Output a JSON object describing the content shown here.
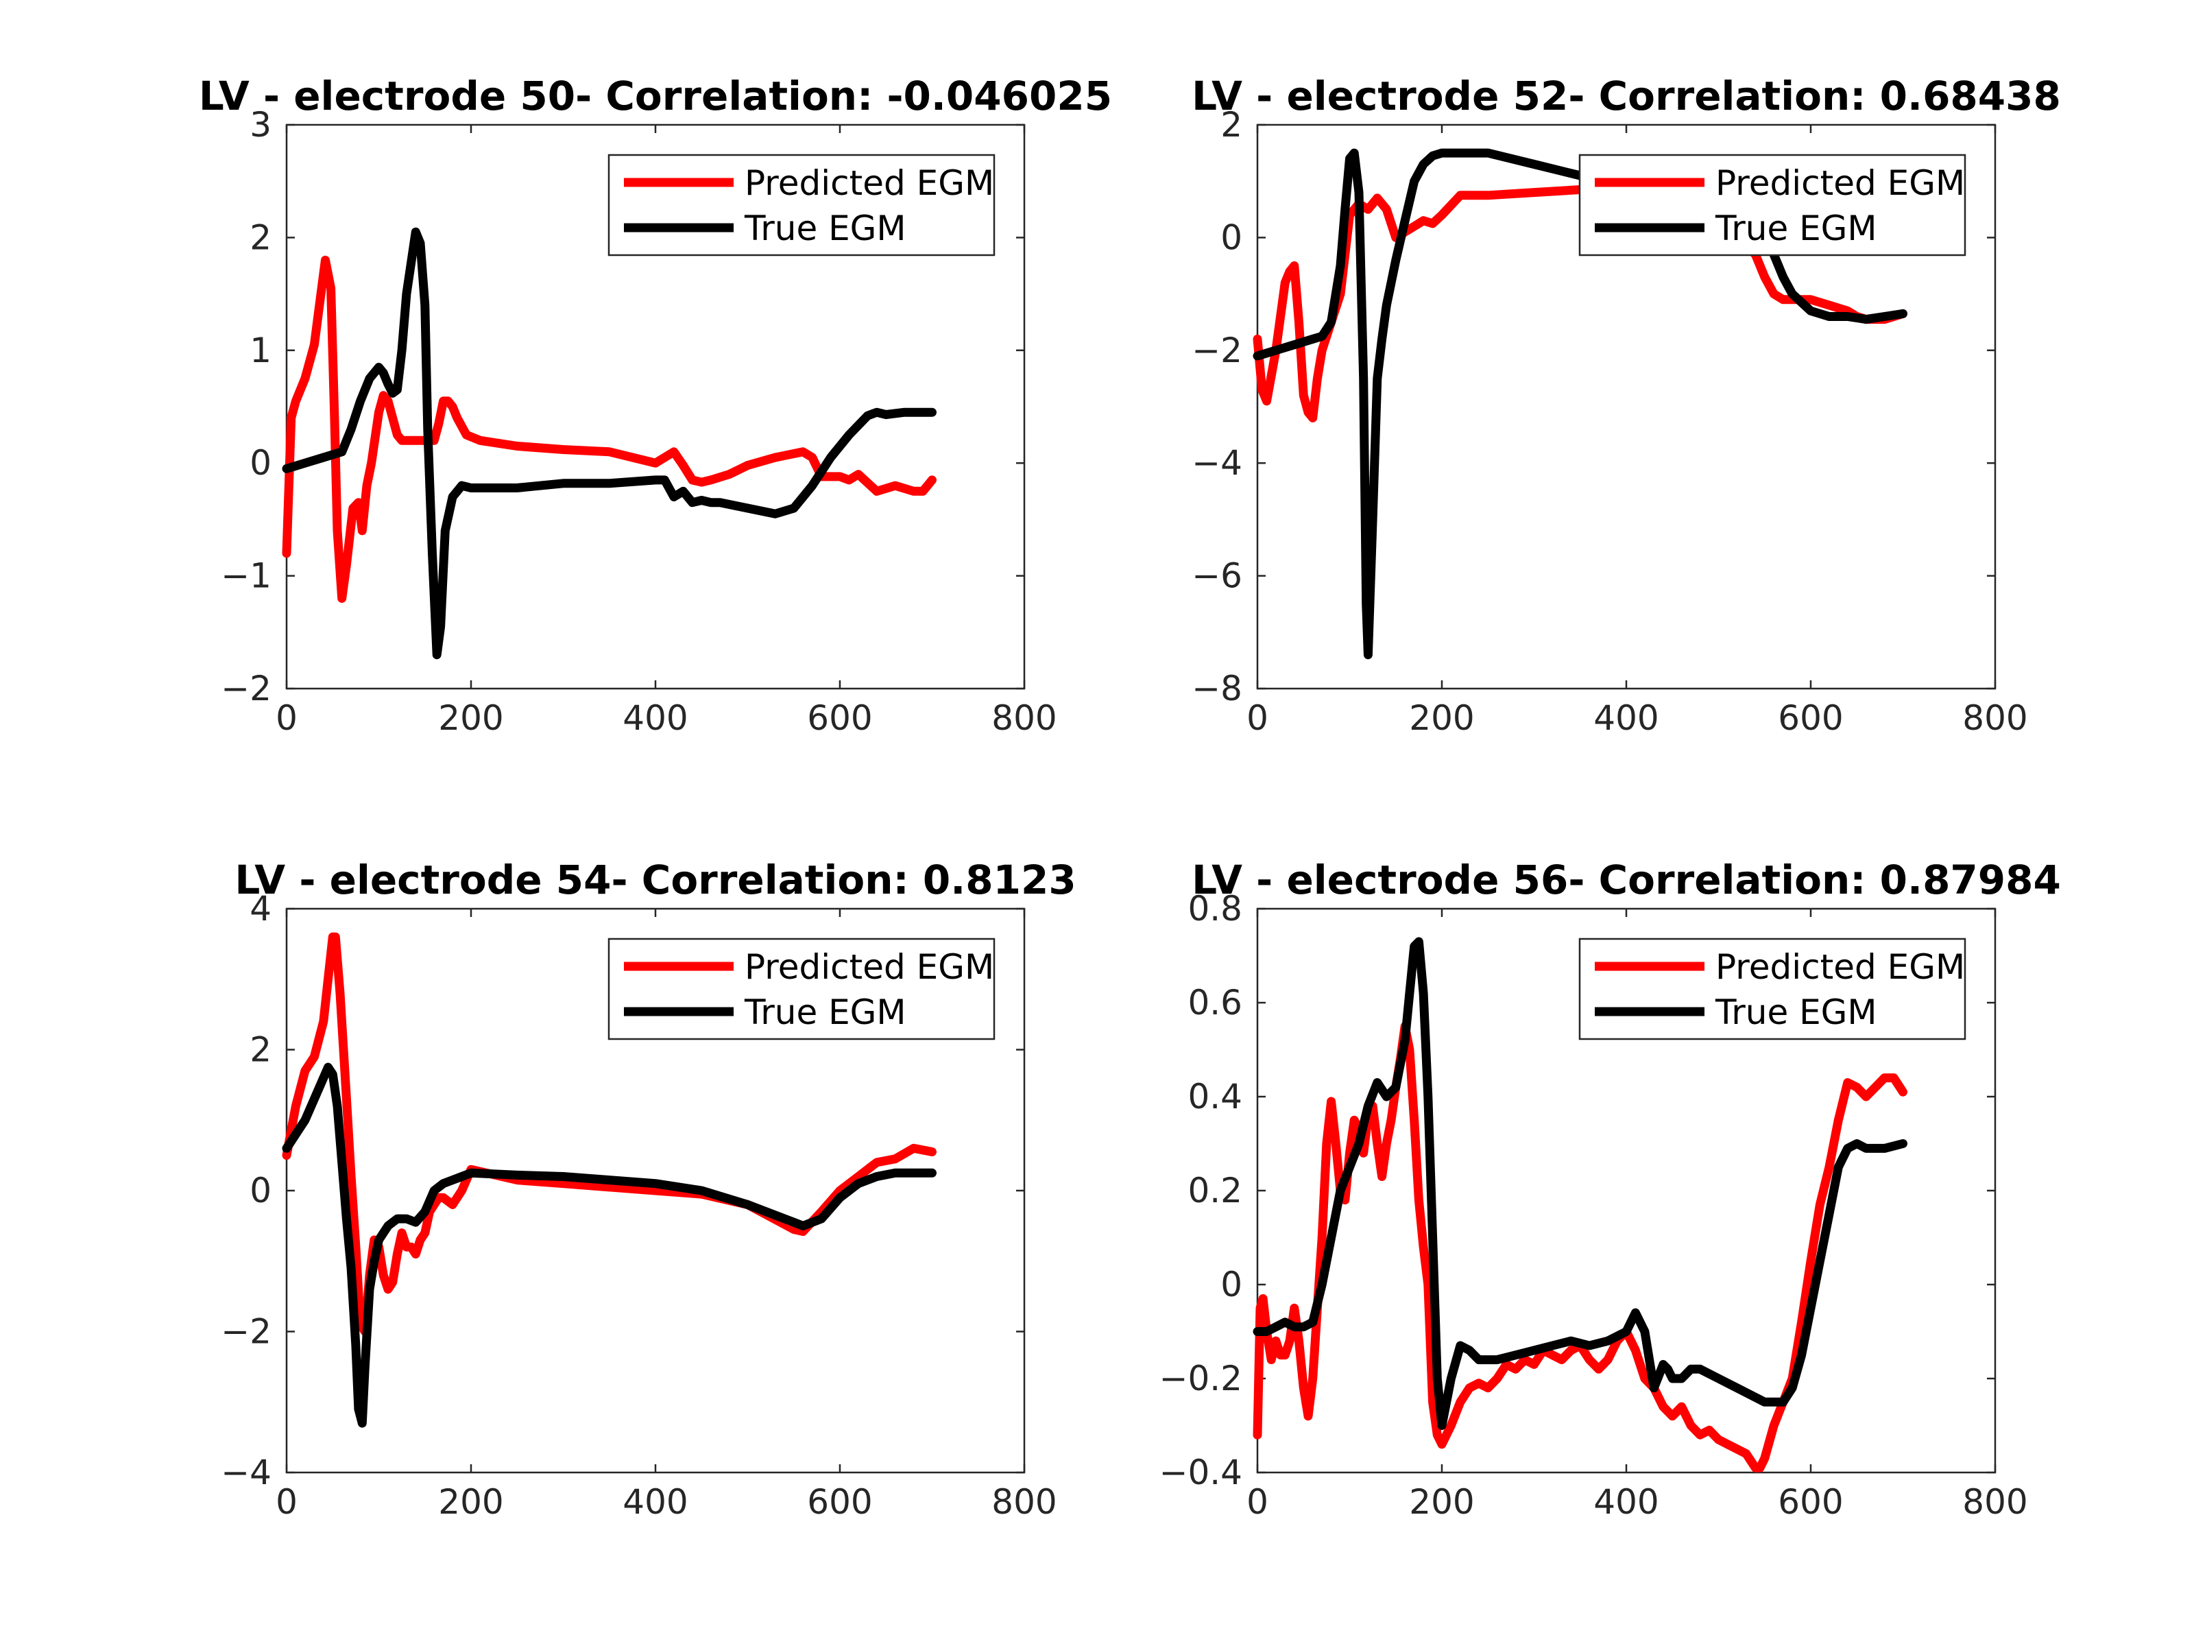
{
  "colors": {
    "predicted": "#ff0000",
    "true": "#000000"
  },
  "chart_data": [
    {
      "type": "line",
      "title": "LV - electrode 50- Correlation: -0.046025",
      "xlim": [
        0,
        800
      ],
      "ylim": [
        -2,
        3
      ],
      "xticks": [
        "0",
        "200",
        "400",
        "600",
        "800"
      ],
      "yticks": [
        "-2",
        "-1",
        "0",
        "1",
        "2",
        "3"
      ],
      "legend": [
        "Predicted EGM",
        "True EGM"
      ],
      "legend_position": "top-right",
      "series": [
        {
          "name": "Predicted EGM",
          "color": "#ff0000",
          "x": [
            0,
            5,
            10,
            20,
            30,
            38,
            42,
            48,
            52,
            55,
            60,
            65,
            72,
            78,
            82,
            87,
            92,
            100,
            105,
            110,
            115,
            120,
            125,
            135,
            145,
            155,
            160,
            165,
            170,
            175,
            180,
            185,
            195,
            210,
            250,
            300,
            350,
            400,
            410,
            420,
            430,
            440,
            450,
            460,
            480,
            500,
            530,
            560,
            570,
            580,
            600,
            610,
            620,
            640,
            660,
            680,
            690,
            700
          ],
          "y": [
            -0.8,
            0.4,
            0.55,
            0.75,
            1.05,
            1.55,
            1.8,
            1.55,
            0.4,
            -0.6,
            -1.2,
            -0.9,
            -0.4,
            -0.35,
            -0.6,
            -0.2,
            0.0,
            0.45,
            0.6,
            0.55,
            0.4,
            0.25,
            0.2,
            0.2,
            0.2,
            0.2,
            0.2,
            0.35,
            0.55,
            0.55,
            0.5,
            0.4,
            0.25,
            0.2,
            0.15,
            0.12,
            0.1,
            0.0,
            0.05,
            0.1,
            -0.02,
            -0.15,
            -0.17,
            -0.15,
            -0.1,
            -0.02,
            0.05,
            0.1,
            0.05,
            -0.12,
            -0.12,
            -0.15,
            -0.1,
            -0.25,
            -0.2,
            -0.25,
            -0.25,
            -0.15
          ]
        },
        {
          "name": "True EGM",
          "color": "#000000",
          "x": [
            0,
            20,
            40,
            60,
            70,
            80,
            90,
            100,
            105,
            110,
            115,
            120,
            125,
            130,
            140,
            145,
            150,
            153,
            158,
            163,
            167,
            172,
            180,
            190,
            200,
            250,
            300,
            350,
            400,
            410,
            420,
            430,
            440,
            450,
            460,
            470,
            500,
            530,
            550,
            570,
            590,
            610,
            630,
            640,
            650,
            670,
            700
          ],
          "y": [
            -0.05,
            0.0,
            0.05,
            0.1,
            0.3,
            0.55,
            0.75,
            0.85,
            0.8,
            0.7,
            0.62,
            0.65,
            1.0,
            1.5,
            2.05,
            1.95,
            1.4,
            0.3,
            -0.8,
            -1.7,
            -1.45,
            -0.6,
            -0.3,
            -0.2,
            -0.22,
            -0.22,
            -0.18,
            -0.18,
            -0.15,
            -0.15,
            -0.3,
            -0.25,
            -0.35,
            -0.33,
            -0.35,
            -0.35,
            -0.4,
            -0.45,
            -0.4,
            -0.2,
            0.05,
            0.25,
            0.42,
            0.45,
            0.43,
            0.45,
            0.45
          ]
        }
      ]
    },
    {
      "type": "line",
      "title": "LV - electrode 52- Correlation: 0.68438",
      "xlim": [
        0,
        800
      ],
      "ylim": [
        -8,
        2
      ],
      "xticks": [
        "0",
        "200",
        "400",
        "600",
        "800"
      ],
      "yticks": [
        "-8",
        "-6",
        "-4",
        "-2",
        "0",
        "2"
      ],
      "legend": [
        "Predicted EGM",
        "True EGM"
      ],
      "legend_position": "top-right",
      "series": [
        {
          "name": "Predicted EGM",
          "color": "#ff0000",
          "x": [
            0,
            5,
            10,
            20,
            30,
            35,
            40,
            45,
            50,
            55,
            60,
            65,
            70,
            80,
            90,
            100,
            110,
            120,
            130,
            140,
            150,
            160,
            170,
            180,
            190,
            200,
            220,
            250,
            300,
            350,
            400,
            450,
            500,
            540,
            550,
            560,
            570,
            580,
            600,
            620,
            640,
            650,
            660,
            680,
            700
          ],
          "y": [
            -1.8,
            -2.7,
            -2.9,
            -2.0,
            -0.8,
            -0.6,
            -0.5,
            -1.5,
            -2.8,
            -3.1,
            -3.2,
            -2.5,
            -2.0,
            -1.5,
            -1.0,
            0.4,
            0.6,
            0.5,
            0.7,
            0.5,
            0.0,
            0.1,
            0.2,
            0.3,
            0.25,
            0.4,
            0.75,
            0.75,
            0.8,
            0.85,
            0.9,
            0.95,
            0.3,
            -0.3,
            -0.7,
            -1.0,
            -1.1,
            -1.1,
            -1.1,
            -1.2,
            -1.3,
            -1.4,
            -1.45,
            -1.45,
            -1.35
          ]
        },
        {
          "name": "True EGM",
          "color": "#000000",
          "x": [
            0,
            20,
            40,
            60,
            70,
            80,
            90,
            95,
            100,
            105,
            110,
            115,
            118,
            120,
            125,
            130,
            135,
            140,
            150,
            160,
            170,
            180,
            190,
            200,
            250,
            300,
            350,
            400,
            450,
            500,
            550,
            560,
            570,
            580,
            600,
            620,
            640,
            660,
            680,
            700
          ],
          "y": [
            -2.1,
            -2.0,
            -1.9,
            -1.8,
            -1.75,
            -1.5,
            -0.5,
            0.5,
            1.4,
            1.5,
            0.8,
            -2.5,
            -6.5,
            -7.4,
            -5.0,
            -2.5,
            -1.8,
            -1.2,
            -0.4,
            0.3,
            1.0,
            1.3,
            1.45,
            1.5,
            1.5,
            1.3,
            1.1,
            1.0,
            0.9,
            0.7,
            0.0,
            -0.3,
            -0.7,
            -1.0,
            -1.3,
            -1.4,
            -1.4,
            -1.45,
            -1.4,
            -1.35
          ]
        }
      ]
    },
    {
      "type": "line",
      "title": "LV - electrode 54- Correlation: 0.8123",
      "xlim": [
        0,
        800
      ],
      "ylim": [
        -4,
        4
      ],
      "xticks": [
        "0",
        "200",
        "400",
        "600",
        "800"
      ],
      "yticks": [
        "-4",
        "-2",
        "0",
        "2",
        "4"
      ],
      "legend": [
        "Predicted EGM",
        "True EGM"
      ],
      "legend_position": "top-right",
      "series": [
        {
          "name": "Predicted EGM",
          "color": "#ff0000",
          "x": [
            0,
            10,
            20,
            30,
            40,
            45,
            50,
            53,
            58,
            65,
            70,
            75,
            80,
            85,
            90,
            95,
            100,
            105,
            110,
            115,
            120,
            125,
            130,
            135,
            140,
            145,
            150,
            155,
            160,
            165,
            170,
            180,
            190,
            200,
            250,
            300,
            350,
            400,
            450,
            500,
            550,
            560,
            580,
            600,
            620,
            640,
            660,
            680,
            700
          ],
          "y": [
            0.5,
            1.2,
            1.7,
            1.9,
            2.4,
            3.0,
            3.6,
            3.6,
            2.8,
            1.3,
            0.2,
            -0.8,
            -1.9,
            -2.0,
            -1.2,
            -0.7,
            -0.8,
            -1.2,
            -1.4,
            -1.3,
            -0.9,
            -0.6,
            -0.8,
            -0.8,
            -0.9,
            -0.7,
            -0.6,
            -0.3,
            -0.2,
            -0.1,
            -0.1,
            -0.2,
            0.0,
            0.3,
            0.15,
            0.1,
            0.05,
            0.0,
            -0.05,
            -0.2,
            -0.55,
            -0.58,
            -0.3,
            0.0,
            0.2,
            0.4,
            0.45,
            0.6,
            0.55
          ]
        },
        {
          "name": "True EGM",
          "color": "#000000",
          "x": [
            0,
            10,
            20,
            30,
            40,
            45,
            50,
            55,
            60,
            65,
            70,
            75,
            78,
            82,
            85,
            90,
            95,
            100,
            110,
            120,
            130,
            140,
            150,
            160,
            170,
            180,
            190,
            200,
            250,
            300,
            350,
            400,
            450,
            500,
            550,
            560,
            580,
            600,
            620,
            640,
            660,
            680,
            700
          ],
          "y": [
            0.6,
            0.8,
            1.0,
            1.3,
            1.6,
            1.75,
            1.65,
            1.2,
            0.4,
            -0.4,
            -1.1,
            -2.2,
            -3.1,
            -3.3,
            -2.5,
            -1.4,
            -1.0,
            -0.7,
            -0.5,
            -0.4,
            -0.4,
            -0.45,
            -0.3,
            0.0,
            0.1,
            0.15,
            0.2,
            0.25,
            0.22,
            0.2,
            0.15,
            0.1,
            0.0,
            -0.2,
            -0.45,
            -0.5,
            -0.4,
            -0.1,
            0.1,
            0.2,
            0.25,
            0.25,
            0.25
          ]
        }
      ]
    },
    {
      "type": "line",
      "title": "LV - electrode 56- Correlation: 0.87984",
      "xlim": [
        0,
        800
      ],
      "ylim": [
        -0.4,
        0.8
      ],
      "xticks": [
        "0",
        "200",
        "400",
        "600",
        "800"
      ],
      "yticks": [
        "-0.4",
        "-0.2",
        "0",
        "0.2",
        "0.4",
        "0.6",
        "0.8"
      ],
      "legend": [
        "Predicted EGM",
        "True EGM"
      ],
      "legend_position": "top-right",
      "series": [
        {
          "name": "Predicted EGM",
          "color": "#ff0000",
          "x": [
            0,
            3,
            6,
            10,
            15,
            20,
            25,
            30,
            35,
            40,
            45,
            50,
            55,
            60,
            65,
            70,
            75,
            80,
            85,
            90,
            95,
            100,
            105,
            110,
            115,
            120,
            125,
            130,
            135,
            140,
            145,
            150,
            155,
            160,
            165,
            170,
            175,
            180,
            185,
            190,
            195,
            200,
            210,
            220,
            230,
            240,
            250,
            260,
            270,
            280,
            290,
            300,
            310,
            320,
            330,
            340,
            350,
            360,
            370,
            380,
            390,
            400,
            410,
            420,
            430,
            440,
            450,
            460,
            470,
            480,
            490,
            500,
            510,
            520,
            530,
            540,
            545,
            550,
            560,
            570,
            580,
            590,
            600,
            610,
            620,
            630,
            640,
            650,
            660,
            670,
            680,
            690,
            700
          ],
          "y": [
            -0.32,
            -0.05,
            -0.03,
            -0.1,
            -0.16,
            -0.12,
            -0.15,
            -0.15,
            -0.12,
            -0.05,
            -0.12,
            -0.22,
            -0.28,
            -0.2,
            -0.05,
            0.1,
            0.3,
            0.39,
            0.3,
            0.2,
            0.18,
            0.28,
            0.35,
            0.33,
            0.28,
            0.36,
            0.38,
            0.3,
            0.23,
            0.3,
            0.35,
            0.42,
            0.48,
            0.55,
            0.5,
            0.35,
            0.18,
            0.08,
            0.0,
            -0.25,
            -0.32,
            -0.34,
            -0.3,
            -0.25,
            -0.22,
            -0.21,
            -0.22,
            -0.2,
            -0.17,
            -0.18,
            -0.16,
            -0.17,
            -0.14,
            -0.15,
            -0.16,
            -0.14,
            -0.13,
            -0.16,
            -0.18,
            -0.16,
            -0.12,
            -0.1,
            -0.14,
            -0.2,
            -0.22,
            -0.26,
            -0.28,
            -0.26,
            -0.3,
            -0.32,
            -0.31,
            -0.33,
            -0.34,
            -0.35,
            -0.36,
            -0.39,
            -0.39,
            -0.37,
            -0.3,
            -0.25,
            -0.2,
            -0.08,
            0.05,
            0.17,
            0.25,
            0.35,
            0.43,
            0.42,
            0.4,
            0.42,
            0.44,
            0.44,
            0.41
          ]
        },
        {
          "name": "True EGM",
          "color": "#000000",
          "x": [
            0,
            10,
            20,
            30,
            40,
            50,
            60,
            70,
            80,
            90,
            100,
            110,
            120,
            130,
            140,
            150,
            160,
            165,
            170,
            175,
            180,
            185,
            190,
            195,
            200,
            210,
            220,
            230,
            240,
            260,
            280,
            300,
            320,
            340,
            360,
            380,
            400,
            410,
            420,
            430,
            440,
            445,
            450,
            460,
            470,
            480,
            500,
            520,
            540,
            550,
            560,
            570,
            580,
            590,
            600,
            610,
            620,
            630,
            640,
            650,
            660,
            680,
            700
          ],
          "y": [
            -0.1,
            -0.1,
            -0.09,
            -0.08,
            -0.09,
            -0.09,
            -0.08,
            0.0,
            0.1,
            0.2,
            0.25,
            0.3,
            0.38,
            0.43,
            0.4,
            0.42,
            0.52,
            0.62,
            0.72,
            0.73,
            0.62,
            0.4,
            0.1,
            -0.2,
            -0.3,
            -0.2,
            -0.13,
            -0.14,
            -0.16,
            -0.16,
            -0.15,
            -0.14,
            -0.13,
            -0.12,
            -0.13,
            -0.12,
            -0.1,
            -0.06,
            -0.1,
            -0.22,
            -0.17,
            -0.18,
            -0.2,
            -0.2,
            -0.18,
            -0.18,
            -0.2,
            -0.22,
            -0.24,
            -0.25,
            -0.25,
            -0.25,
            -0.22,
            -0.15,
            -0.05,
            0.05,
            0.15,
            0.25,
            0.29,
            0.3,
            0.29,
            0.29,
            0.3
          ]
        }
      ]
    }
  ]
}
